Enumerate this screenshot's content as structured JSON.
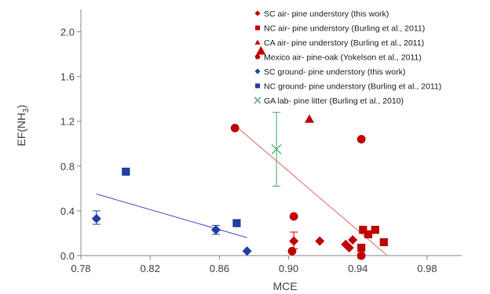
{
  "chart_data": {
    "type": "scatter",
    "xlabel": "MCE",
    "ylabel": "EF(NH3)",
    "ylabel_base": "EF(NH",
    "ylabel_sub": "3",
    "ylabel_end": ")",
    "xlim": [
      0.78,
      1.0
    ],
    "ylim": [
      0.0,
      2.2
    ],
    "xticks": [
      "0.78",
      "0.82",
      "0.86",
      "0.90",
      "0.94",
      "0.98"
    ],
    "yticks": [
      "0.0",
      "0.4",
      "0.8",
      "1.2",
      "1.6",
      "2.0"
    ],
    "legend_position": "top-right",
    "grid": false,
    "series": [
      {
        "name": "SC air- pine understory (this work)",
        "marker": "diamond",
        "color": "#c00000",
        "points": [
          [
            0.903,
            0.13
          ],
          [
            0.918,
            0.13
          ],
          [
            0.933,
            0.1
          ],
          [
            0.935,
            0.07
          ],
          [
            0.937,
            0.14
          ]
        ],
        "error_bars": [
          {
            "x": 0.903,
            "low": 0.06,
            "high": 0.21
          }
        ]
      },
      {
        "name": "NC air- pine understory (Burling et al., 2011)",
        "marker": "square",
        "color": "#c00000",
        "points": [
          [
            0.942,
            0.07
          ],
          [
            0.943,
            0.23
          ],
          [
            0.946,
            0.19
          ],
          [
            0.95,
            0.23
          ],
          [
            0.955,
            0.12
          ]
        ]
      },
      {
        "name": "CA air- pine understory (Burling et al., 2011)",
        "marker": "triangle",
        "color": "#c00000",
        "points": [
          [
            0.884,
            1.83
          ],
          [
            0.912,
            1.22
          ]
        ]
      },
      {
        "name": "Mexico air- pine-oak (Yokelson et al., 2011)",
        "marker": "circle",
        "color": "#c00000",
        "points": [
          [
            0.869,
            1.14
          ],
          [
            0.903,
            0.35
          ],
          [
            0.902,
            0.04
          ],
          [
            0.942,
            1.04
          ],
          [
            0.942,
            0.0
          ]
        ]
      },
      {
        "name": "SC ground- pine understory (this work)",
        "marker": "diamond",
        "color": "#1f3fa3",
        "points": [
          [
            0.789,
            0.33
          ],
          [
            0.858,
            0.23
          ],
          [
            0.876,
            0.04
          ]
        ],
        "error_bars": [
          {
            "x": 0.789,
            "low": 0.28,
            "high": 0.4
          },
          {
            "x": 0.858,
            "low": 0.19,
            "high": 0.27
          }
        ]
      },
      {
        "name": "NC ground- pine understory (Burling et al., 2011)",
        "marker": "square",
        "color": "#1f3fa3",
        "points": [
          [
            0.806,
            0.75
          ],
          [
            0.87,
            0.29
          ]
        ]
      },
      {
        "name": "GA lab- pine litter (Burling et al., 2010)",
        "marker": "x",
        "color": "#4aaa77",
        "points": [
          [
            0.893,
            0.95
          ]
        ],
        "error_bars": [
          {
            "x": 0.893,
            "low": 0.62,
            "high": 1.28
          }
        ]
      }
    ],
    "trendlines": [
      {
        "color": "#e26b6b",
        "x1": 0.87,
        "y1": 1.15,
        "x2": 0.957,
        "y2": 0.0
      },
      {
        "color": "#4a4fc7",
        "x1": 0.789,
        "y1": 0.55,
        "x2": 0.876,
        "y2": 0.16
      }
    ]
  }
}
